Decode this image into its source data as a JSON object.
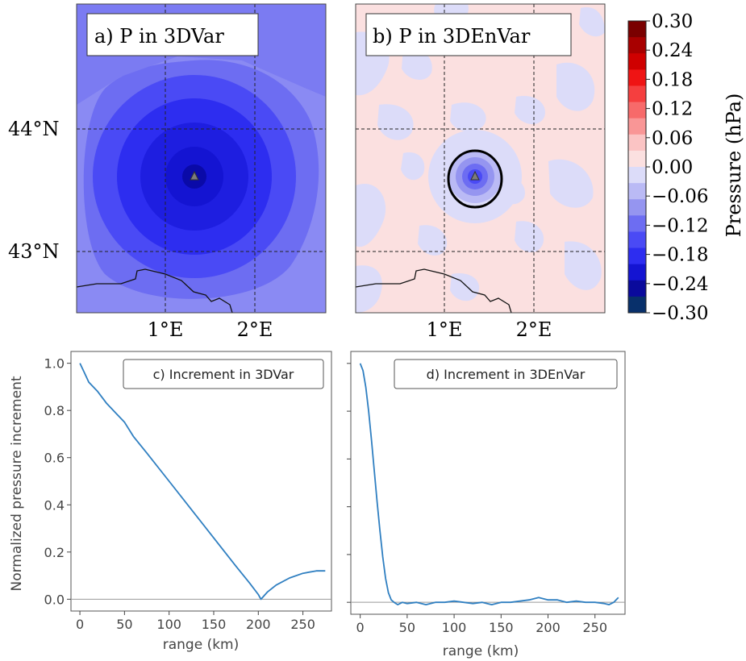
{
  "colors": {
    "neg": [
      "#08306b",
      "#0a0a9c",
      "#1414d2",
      "#2d2df0",
      "#4a4af5",
      "#6d6df2",
      "#9595f0",
      "#babaf5",
      "#dcdcf9"
    ],
    "pos": [
      "#fbe0e0",
      "#fbc4c4",
      "#f99696",
      "#f76a6a",
      "#f53f3f",
      "#ef1414",
      "#cf0000",
      "#a80000",
      "#7a0000"
    ],
    "line": "#2f7fc1",
    "zero_line": "#999999"
  },
  "map_a": {
    "title": "a) P in 3DVar",
    "xticks": [
      "1°E",
      "2°E"
    ],
    "yticks": [
      "44°N",
      "43°N"
    ]
  },
  "map_b": {
    "title": "b) P in 3DEnVar",
    "xticks": [
      "1°E",
      "2°E"
    ]
  },
  "colorbar": {
    "label": "Pressure (hPa)",
    "ticks": [
      "0.30",
      "0.24",
      "0.18",
      "0.12",
      "0.06",
      "0.00",
      "−0.06",
      "−0.12",
      "−0.18",
      "−0.24",
      "−0.30"
    ]
  },
  "chart_data": [
    {
      "type": "line",
      "title": "c) Increment in 3DVar",
      "xlabel": "range (km)",
      "ylabel": "Normalized pressure increment",
      "xlim": [
        -10,
        282
      ],
      "ylim": [
        -0.05,
        1.05
      ],
      "xticks": [
        "0",
        "50",
        "100",
        "150",
        "200",
        "250"
      ],
      "yticks": [
        "0.0",
        "0.2",
        "0.4",
        "0.6",
        "0.8",
        "1.0"
      ],
      "x": [
        0,
        5,
        10,
        20,
        30,
        40,
        50,
        60,
        75,
        100,
        125,
        150,
        175,
        190,
        200,
        203,
        210,
        220,
        235,
        250,
        265,
        275
      ],
      "y": [
        1.0,
        0.96,
        0.92,
        0.88,
        0.83,
        0.79,
        0.75,
        0.69,
        0.62,
        0.5,
        0.38,
        0.26,
        0.14,
        0.07,
        0.02,
        0.0,
        0.03,
        0.06,
        0.09,
        0.11,
        0.12,
        0.12
      ]
    },
    {
      "type": "line",
      "title": "d) Increment in 3DEnVar",
      "xlabel": "range (km)",
      "xlim": [
        -10,
        282
      ],
      "ylim": [
        -0.05,
        1.05
      ],
      "xticks": [
        "0",
        "50",
        "100",
        "150",
        "200",
        "250"
      ],
      "x": [
        0,
        3,
        6,
        9,
        12,
        15,
        18,
        21,
        24,
        27,
        30,
        33,
        36,
        40,
        45,
        50,
        60,
        70,
        80,
        90,
        100,
        110,
        120,
        130,
        140,
        150,
        160,
        170,
        180,
        190,
        200,
        210,
        220,
        230,
        240,
        250,
        260,
        265,
        270,
        275
      ],
      "y": [
        1.0,
        0.97,
        0.9,
        0.8,
        0.68,
        0.55,
        0.42,
        0.3,
        0.19,
        0.1,
        0.04,
        0.01,
        0.0,
        -0.01,
        0.0,
        -0.005,
        0.0,
        -0.01,
        0.0,
        0.0,
        0.005,
        0.0,
        -0.005,
        0.0,
        -0.01,
        0.0,
        0.0,
        0.005,
        0.01,
        0.02,
        0.01,
        0.01,
        0.0,
        0.005,
        0.0,
        0.0,
        -0.005,
        -0.01,
        0.0,
        0.02
      ]
    }
  ]
}
